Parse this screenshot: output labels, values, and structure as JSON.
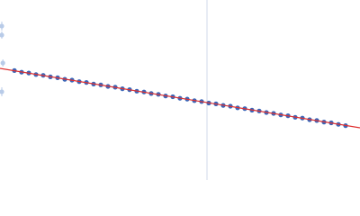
{
  "chart_data": {
    "type": "scatter",
    "xlim": [
      0,
      1
    ],
    "ylim": [
      0,
      2
    ],
    "series": [
      {
        "color": "#3a66b8",
        "x": [
          0.04,
          0.06,
          0.08,
          0.1,
          0.12,
          0.14,
          0.16,
          0.18,
          0.2,
          0.22,
          0.24,
          0.26,
          0.28,
          0.3,
          0.32,
          0.34,
          0.36,
          0.38,
          0.4,
          0.42,
          0.44,
          0.46,
          0.48,
          0.5,
          0.52,
          0.54,
          0.56,
          0.58,
          0.6,
          0.62,
          0.64,
          0.66,
          0.68,
          0.7,
          0.72,
          0.74,
          0.76,
          0.78,
          0.8,
          0.82,
          0.84,
          0.86,
          0.88,
          0.9,
          0.92,
          0.94,
          0.96
        ],
        "values": [
          1.216,
          1.198,
          1.189,
          1.172,
          1.163,
          1.146,
          1.136,
          1.119,
          1.11,
          1.093,
          1.084,
          1.066,
          1.057,
          1.04,
          1.031,
          1.014,
          1.004,
          0.987,
          0.978,
          0.961,
          0.952,
          0.934,
          0.925,
          0.908,
          0.899,
          0.882,
          0.872,
          0.855,
          0.846,
          0.829,
          0.82,
          0.802,
          0.793,
          0.776,
          0.767,
          0.75,
          0.74,
          0.723,
          0.714,
          0.697,
          0.688,
          0.67,
          0.661,
          0.644,
          0.635,
          0.618,
          0.604
        ]
      },
      {
        "color": "#b8cbe8",
        "x": [
          0.005,
          0.005,
          0.008,
          0.005
        ],
        "values": [
          1.71,
          1.61,
          1.3,
          0.98
        ],
        "errors": [
          0.05,
          0.04,
          0.04,
          0.05
        ]
      }
    ],
    "fit": {
      "x": [
        0,
        1
      ],
      "values": [
        1.24,
        0.58
      ],
      "color": "#e03030"
    },
    "vline": {
      "x": 0.575,
      "color": "#d0d8e8"
    }
  }
}
